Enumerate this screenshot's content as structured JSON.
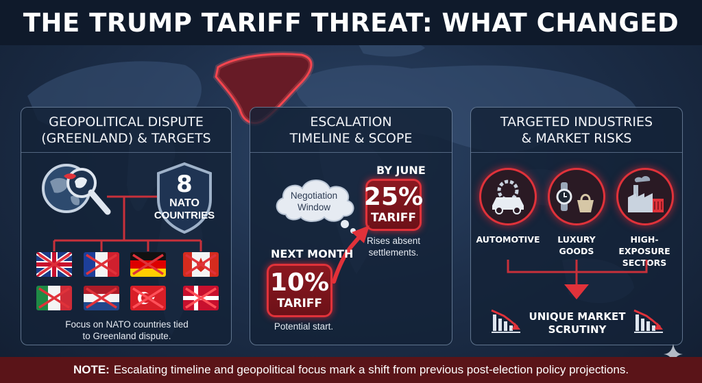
{
  "title": "THE TRUMP TARIFF THREAT: WHAT CHANGED",
  "colors": {
    "accent_red": "#e0323a",
    "panel_bg": "#142237",
    "footer_bg": "#5a1418"
  },
  "panel1": {
    "heading_line1": "GEOPOLITICAL DISPUTE",
    "heading_line2": "(GREENLAND) & TARGETS",
    "shield_number": "8",
    "shield_line1": "NATO",
    "shield_line2": "COUNTRIES",
    "flags": [
      "united-kingdom-flag",
      "france-flag",
      "germany-flag",
      "canada-flag",
      "italy-flag",
      "netherlands-flag",
      "turkey-flag",
      "denmark-flag"
    ],
    "caption_line1": "Focus on NATO countries tied",
    "caption_line2": "to Greenland dispute."
  },
  "panel2": {
    "heading_line1": "ESCALATION",
    "heading_line2": "TIMELINE & SCOPE",
    "cloud_line1": "Negotiation",
    "cloud_line2": "Window",
    "june_label": "BY JUNE",
    "june_pct": "25%",
    "june_tariff": "TARIFF",
    "june_note_line1": "Rises absent",
    "june_note_line2": "settlements.",
    "month_label": "NEXT MONTH",
    "month_pct": "10%",
    "month_tariff": "TARIFF",
    "month_note": "Potential start."
  },
  "panel3": {
    "heading_line1": "TARGETED INDUSTRIES",
    "heading_line2": "& MARKET RISKS",
    "industries": [
      {
        "icon": "car-gear-icon",
        "line1": "AUTOMOTIVE",
        "line2": ""
      },
      {
        "icon": "watch-handbag-icon",
        "line1": "LUXURY",
        "line2": "GOODS"
      },
      {
        "icon": "factory-icon",
        "line1": "HIGH-EXPOSURE",
        "line2": "SECTORS"
      }
    ],
    "scrutiny_line1": "UNIQUE MARKET",
    "scrutiny_line2": "SCRUTINY"
  },
  "footer": {
    "note_label": "NOTE:",
    "note_text": "Escalating timeline and geopolitical focus mark a shift from previous post-election policy projections."
  }
}
